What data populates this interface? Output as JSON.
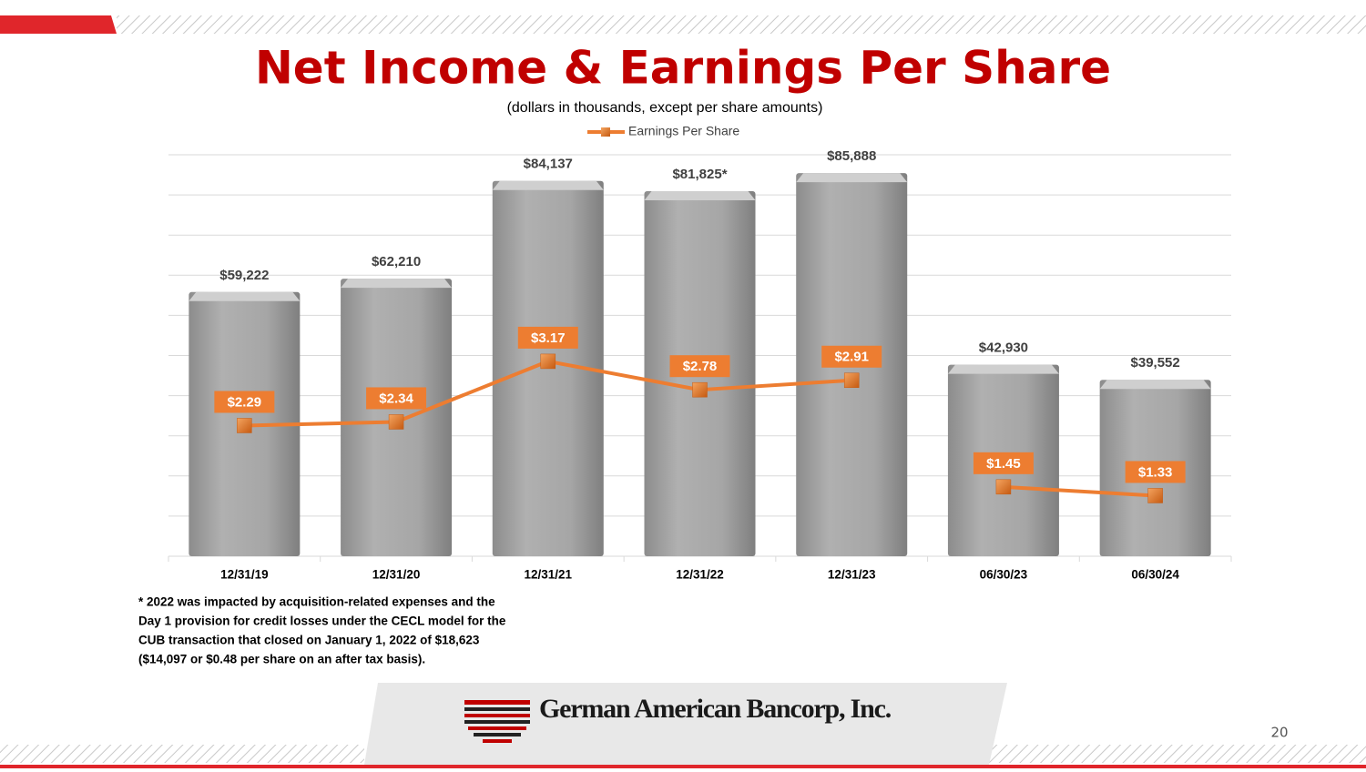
{
  "chart_data": {
    "type": "bar",
    "title": "Net Income & Earnings Per Share",
    "subtitle": "(dollars in thousands, except per share amounts)",
    "categories": [
      "12/31/19",
      "12/31/20",
      "12/31/21",
      "12/31/22",
      "12/31/23",
      "06/30/23",
      "06/30/24"
    ],
    "series": [
      {
        "type": "bar",
        "color": "#a6a6a6",
        "values": [
          59222,
          62210,
          84137,
          81825,
          85888,
          42930,
          39552
        ],
        "value_labels": [
          "$59,222",
          "$62,210",
          "$84,137",
          "$81,825*",
          "$85,888",
          "$42,930",
          "$39,552"
        ]
      },
      {
        "type": "line",
        "name": "Earnings Per Share",
        "color": "#ed7d31",
        "axis": "y2",
        "values": [
          2.29,
          2.34,
          3.17,
          2.78,
          2.91,
          1.45,
          1.33
        ],
        "value_labels": [
          "$2.29",
          "$2.34",
          "$3.17",
          "$2.78",
          "$2.91",
          "$1.45",
          "$1.33"
        ]
      }
    ],
    "ylim": [
      0,
      90000
    ],
    "yticks": [
      0,
      9000,
      18000,
      27000,
      36000,
      45000,
      54000,
      63000,
      72000,
      81000,
      90000
    ],
    "y2lim": [
      0.5,
      6
    ],
    "grid": true,
    "legend": "top"
  },
  "footnote": [
    "* 2022 was impacted by acquisition-related expenses and the",
    "Day 1 provision for credit losses under the CECL model for the",
    "CUB transaction that closed on January 1, 2022 of $18,623",
    "($14,097 or $0.48 per share on an after tax basis)."
  ],
  "logo": "German American Bancorp, Inc.",
  "page_number": 20
}
